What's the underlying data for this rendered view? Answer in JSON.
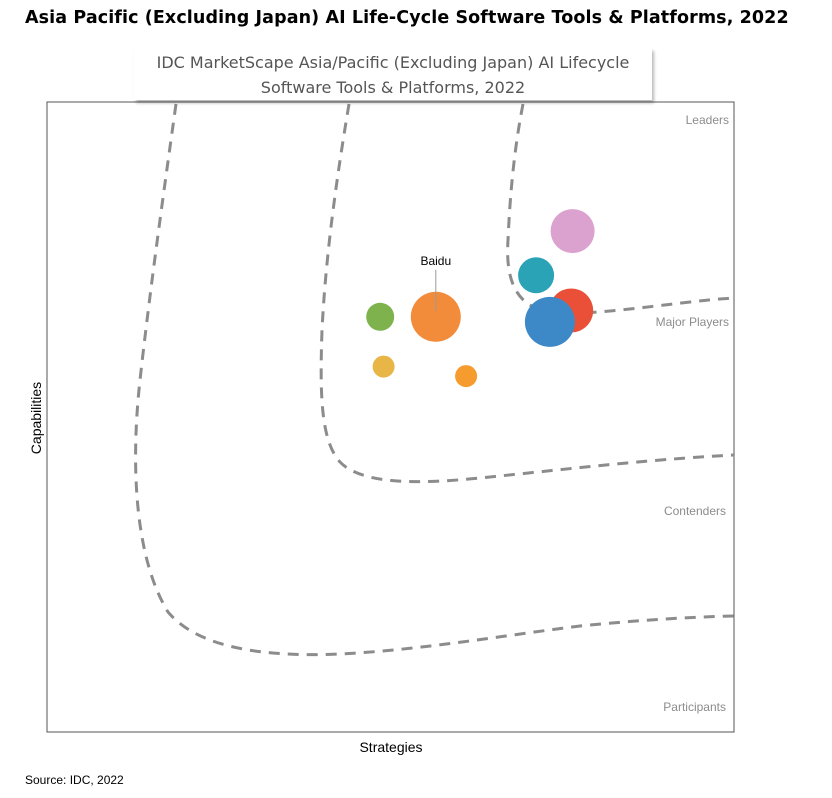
{
  "header": {
    "title": "Asia Pacific (Excluding Japan) AI Life-Cycle Software Tools & Platforms, 2022"
  },
  "caption": {
    "line1": "IDC MarketScape Asia/Pacific (Excluding Japan) AI Lifecycle",
    "line2": "Software Tools & Platforms, 2022"
  },
  "footer": {
    "source": "Source: IDC, 2022"
  },
  "chart_data": {
    "type": "scatter",
    "xlabel": "Strategies",
    "ylabel": "Capabilities",
    "xlim": [
      0,
      100
    ],
    "ylim": [
      0,
      100
    ],
    "grid": false,
    "legend": "none",
    "zones": [
      "Leaders",
      "Major Players",
      "Contenders",
      "Participants"
    ],
    "points": [
      {
        "x": 76.5,
        "y": 79.5,
        "size": 22,
        "color": "#dba1cf",
        "label": ""
      },
      {
        "x": 71.2,
        "y": 72.5,
        "size": 18,
        "color": "#2aa3b7",
        "label": ""
      },
      {
        "x": 76.3,
        "y": 66.9,
        "size": 22,
        "color": "#ea5038",
        "label": ""
      },
      {
        "x": 73.2,
        "y": 65.1,
        "size": 25,
        "color": "#3d88c6",
        "label": ""
      },
      {
        "x": 56.6,
        "y": 65.9,
        "size": 25,
        "color": "#f28c3a",
        "label": "Baidu"
      },
      {
        "x": 48.5,
        "y": 65.9,
        "size": 14,
        "color": "#7eb24c",
        "label": ""
      },
      {
        "x": 49.0,
        "y": 58.0,
        "size": 11,
        "color": "#e8b547",
        "label": ""
      },
      {
        "x": 61.0,
        "y": 56.5,
        "size": 11,
        "color": "#f69b2e",
        "label": ""
      }
    ]
  }
}
